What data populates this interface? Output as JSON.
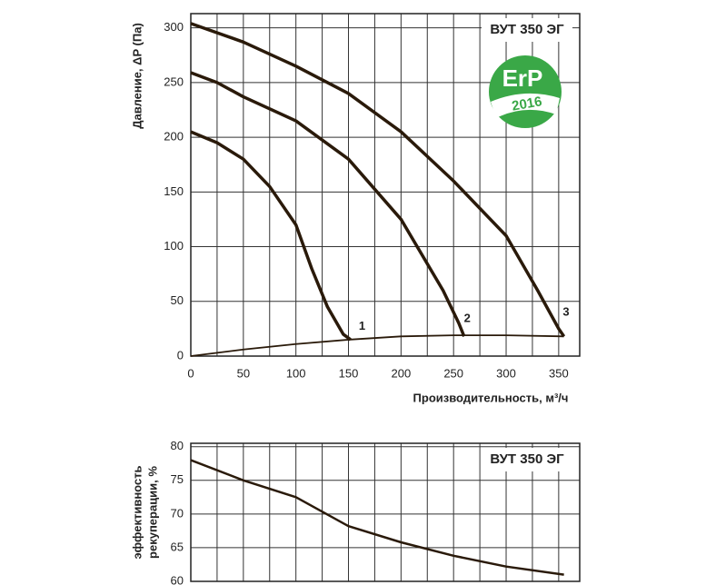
{
  "chart_data": [
    {
      "type": "line",
      "title": "ВУТ 350 ЭГ",
      "badge": [
        "ErP",
        "2016"
      ],
      "y_label": "Давление, ΔP (Па)",
      "x_label": "Производительность,  м³/ч",
      "xlim": [
        0,
        370
      ],
      "ylim": [
        0,
        313
      ],
      "xticks": [
        0,
        50,
        100,
        150,
        200,
        250,
        300,
        350
      ],
      "yticks": [
        0,
        50,
        100,
        150,
        200,
        250,
        300
      ],
      "xgrid": [
        25,
        75,
        125,
        175,
        225,
        275,
        325
      ],
      "grid": true,
      "color": "#2a1a0a",
      "series": [
        {
          "name": "1",
          "x": [
            0,
            25,
            50,
            75,
            100,
            115,
            130,
            145,
            152
          ],
          "values": [
            205,
            195,
            180,
            155,
            120,
            80,
            45,
            20,
            15
          ]
        },
        {
          "name": "2",
          "x": [
            0,
            25,
            50,
            100,
            150,
            200,
            240,
            255,
            260
          ],
          "values": [
            259,
            250,
            237,
            215,
            180,
            125,
            60,
            30,
            18
          ]
        },
        {
          "name": "3",
          "x": [
            0,
            50,
            100,
            150,
            200,
            250,
            300,
            330,
            350,
            355
          ],
          "values": [
            304,
            287,
            265,
            240,
            205,
            160,
            110,
            60,
            25,
            18
          ]
        },
        {
          "x": [
            0,
            50,
            100,
            150,
            200,
            250,
            300,
            355
          ],
          "values": [
            0,
            6,
            11,
            15,
            18,
            19,
            19,
            18
          ]
        }
      ],
      "annotations": [
        {
          "text": "1",
          "x": 163,
          "y": 27
        },
        {
          "text": "2",
          "x": 263,
          "y": 34
        },
        {
          "text": "3",
          "x": 357,
          "y": 40
        }
      ]
    },
    {
      "type": "line",
      "title": "ВУТ 350 ЭГ",
      "y_label": [
        "эффективность",
        "рекуперации, %"
      ],
      "xlim": [
        0,
        370
      ],
      "ylim": [
        60,
        80.5
      ],
      "yticks": [
        60,
        65,
        70,
        75,
        80
      ],
      "xgrid": [
        25,
        50,
        75,
        100,
        125,
        150,
        175,
        200,
        225,
        250,
        275,
        300,
        325,
        350
      ],
      "grid": true,
      "color": "#2a1a0a",
      "series": [
        {
          "x": [
            0,
            50,
            100,
            150,
            200,
            250,
            300,
            355
          ],
          "values": [
            78,
            75,
            72.5,
            68.2,
            65.8,
            63.8,
            62.2,
            61
          ]
        }
      ]
    }
  ]
}
